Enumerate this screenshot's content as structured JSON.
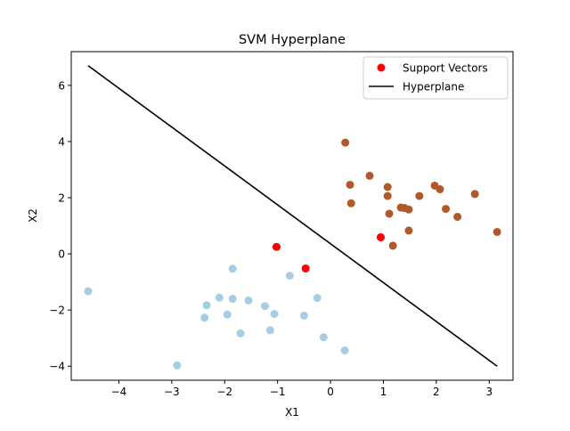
{
  "chart_data": {
    "type": "scatter",
    "title": "SVM Hyperplane",
    "xlabel": "X1",
    "ylabel": "X2",
    "xlim": [
      -4.9,
      3.45
    ],
    "ylim": [
      -4.5,
      7.2
    ],
    "x_ticks": [
      -4,
      -3,
      -2,
      -1,
      0,
      1,
      2,
      3
    ],
    "y_ticks": [
      -4,
      -2,
      0,
      2,
      4,
      6
    ],
    "grid": false,
    "legend_position": "top-right",
    "legend": [
      {
        "label": "Support Vectors",
        "kind": "marker",
        "color": "#ff0000"
      },
      {
        "label": "Hyperplane",
        "kind": "line",
        "color": "#000000"
      }
    ],
    "class_colors": {
      "class_0": "#a6cee3",
      "class_1": "#b15928"
    },
    "series": [
      {
        "class": "class_0",
        "color": "#a6cee3",
        "points": [
          [
            -4.58,
            -1.33
          ],
          [
            -2.9,
            -3.97
          ],
          [
            -2.38,
            -2.27
          ],
          [
            -2.34,
            -1.83
          ],
          [
            -2.1,
            -1.56
          ],
          [
            -1.95,
            -2.16
          ],
          [
            -1.85,
            -0.53
          ],
          [
            -1.85,
            -1.6
          ],
          [
            -1.7,
            -2.83
          ],
          [
            -1.55,
            -1.66
          ],
          [
            -1.24,
            -1.86
          ],
          [
            -1.14,
            -2.72
          ],
          [
            -1.06,
            -2.14
          ],
          [
            -0.77,
            -0.78
          ],
          [
            -0.5,
            -2.2
          ],
          [
            -0.25,
            -1.57
          ],
          [
            -0.13,
            -2.97
          ],
          [
            0.27,
            -3.44
          ],
          [
            -1.02,
            0.25
          ],
          [
            -0.47,
            -0.52
          ]
        ]
      },
      {
        "class": "class_1",
        "color": "#b15928",
        "points": [
          [
            0.28,
            3.96
          ],
          [
            0.37,
            2.46
          ],
          [
            0.39,
            1.8
          ],
          [
            0.74,
            2.78
          ],
          [
            1.08,
            2.38
          ],
          [
            1.08,
            2.06
          ],
          [
            1.11,
            1.43
          ],
          [
            1.18,
            0.29
          ],
          [
            1.33,
            1.65
          ],
          [
            1.4,
            1.63
          ],
          [
            1.48,
            1.58
          ],
          [
            1.48,
            0.83
          ],
          [
            1.68,
            2.06
          ],
          [
            1.97,
            2.43
          ],
          [
            2.07,
            2.3
          ],
          [
            2.18,
            1.6
          ],
          [
            2.4,
            1.32
          ],
          [
            2.73,
            2.13
          ],
          [
            3.15,
            0.78
          ],
          [
            0.95,
            0.59
          ]
        ]
      }
    ],
    "support_vectors": {
      "color": "#ff0000",
      "points": [
        [
          -1.02,
          0.25
        ],
        [
          -0.47,
          -0.52
        ],
        [
          0.95,
          0.59
        ]
      ]
    },
    "hyperplane": {
      "color": "#000000",
      "x": [
        -4.58,
        3.15
      ],
      "y": [
        6.7,
        -4.0
      ]
    }
  }
}
